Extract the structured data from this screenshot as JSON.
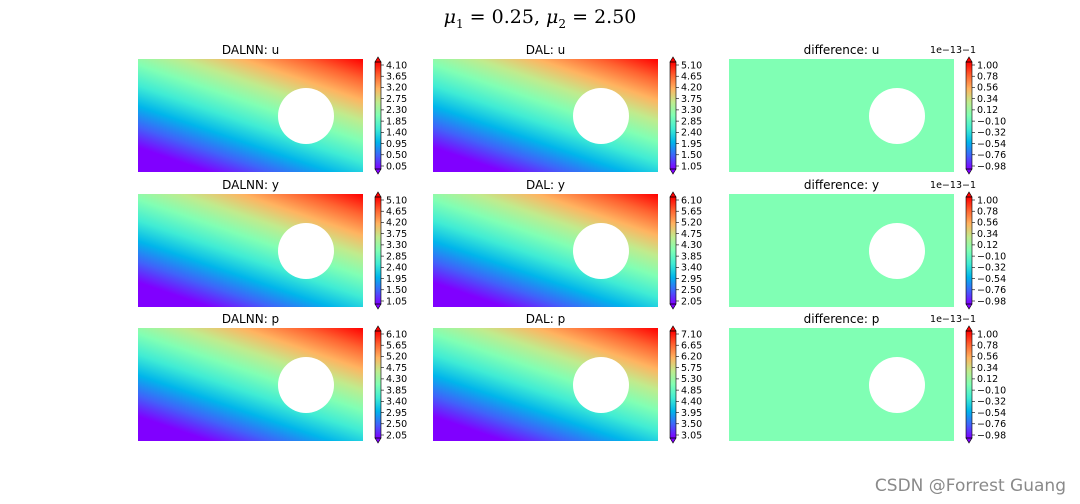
{
  "suptitle": {
    "mu1_symbol": "μ",
    "mu1_sub": "1",
    "mu1_value": "0.25",
    "mu2_symbol": "μ",
    "mu2_sub": "2",
    "mu2_value": "2.50"
  },
  "watermark": "CSDN @Forrest Guang",
  "colors": {
    "rainbow": [
      "#8000ff",
      "#4062fa",
      "#00b5eb",
      "#40ecd4",
      "#80ffb4",
      "#c0eb8d",
      "#ffb360",
      "#ff6230",
      "#ff0000"
    ],
    "difference_fill": "#80ffb4"
  },
  "chart_data": [
    {
      "type": "heatmap",
      "title": "DALNN: u",
      "field": "gradient",
      "cmap": "rainbow",
      "colorbar": {
        "ticks": [
          "0.05",
          "0.50",
          "0.95",
          "1.40",
          "1.85",
          "2.30",
          "2.75",
          "3.20",
          "3.65",
          "4.10"
        ],
        "offset_label": ""
      }
    },
    {
      "type": "heatmap",
      "title": "DAL: u",
      "field": "gradient",
      "cmap": "rainbow",
      "colorbar": {
        "ticks": [
          "1.05",
          "1.50",
          "1.95",
          "2.40",
          "2.85",
          "3.30",
          "3.75",
          "4.20",
          "4.65",
          "5.10"
        ],
        "offset_label": ""
      }
    },
    {
      "type": "heatmap",
      "title": "difference: u",
      "field": "uniform",
      "cmap": "rainbow",
      "colorbar": {
        "ticks": [
          "−0.98",
          "−0.76",
          "−0.54",
          "−0.32",
          "−0.10",
          "0.12",
          "0.34",
          "0.56",
          "0.78",
          "1.00"
        ],
        "offset_label": "1e−13−1"
      }
    },
    {
      "type": "heatmap",
      "title": "DALNN: y",
      "field": "gradient",
      "cmap": "rainbow",
      "colorbar": {
        "ticks": [
          "1.05",
          "1.50",
          "1.95",
          "2.40",
          "2.85",
          "3.30",
          "3.75",
          "4.20",
          "4.65",
          "5.10"
        ],
        "offset_label": ""
      }
    },
    {
      "type": "heatmap",
      "title": "DAL: y",
      "field": "gradient",
      "cmap": "rainbow",
      "colorbar": {
        "ticks": [
          "2.05",
          "2.50",
          "2.95",
          "3.40",
          "3.85",
          "4.30",
          "4.75",
          "5.20",
          "5.65",
          "6.10"
        ],
        "offset_label": ""
      }
    },
    {
      "type": "heatmap",
      "title": "difference: y",
      "field": "uniform",
      "cmap": "rainbow",
      "colorbar": {
        "ticks": [
          "−0.98",
          "−0.76",
          "−0.54",
          "−0.32",
          "−0.10",
          "0.12",
          "0.34",
          "0.56",
          "0.78",
          "1.00"
        ],
        "offset_label": "1e−13−1"
      }
    },
    {
      "type": "heatmap",
      "title": "DALNN: p",
      "field": "gradient",
      "cmap": "rainbow",
      "colorbar": {
        "ticks": [
          "2.05",
          "2.50",
          "2.95",
          "3.40",
          "3.85",
          "4.30",
          "4.75",
          "5.20",
          "5.65",
          "6.10"
        ],
        "offset_label": ""
      }
    },
    {
      "type": "heatmap",
      "title": "DAL: p",
      "field": "gradient",
      "cmap": "rainbow",
      "colorbar": {
        "ticks": [
          "3.05",
          "3.50",
          "3.95",
          "4.40",
          "4.85",
          "5.30",
          "5.75",
          "6.20",
          "6.65",
          "7.10"
        ],
        "offset_label": ""
      }
    },
    {
      "type": "heatmap",
      "title": "difference: p",
      "field": "uniform",
      "cmap": "rainbow",
      "colorbar": {
        "ticks": [
          "−0.98",
          "−0.76",
          "−0.54",
          "−0.32",
          "−0.10",
          "0.12",
          "0.34",
          "0.56",
          "0.78",
          "1.00"
        ],
        "offset_label": "1e−13−1"
      }
    }
  ]
}
